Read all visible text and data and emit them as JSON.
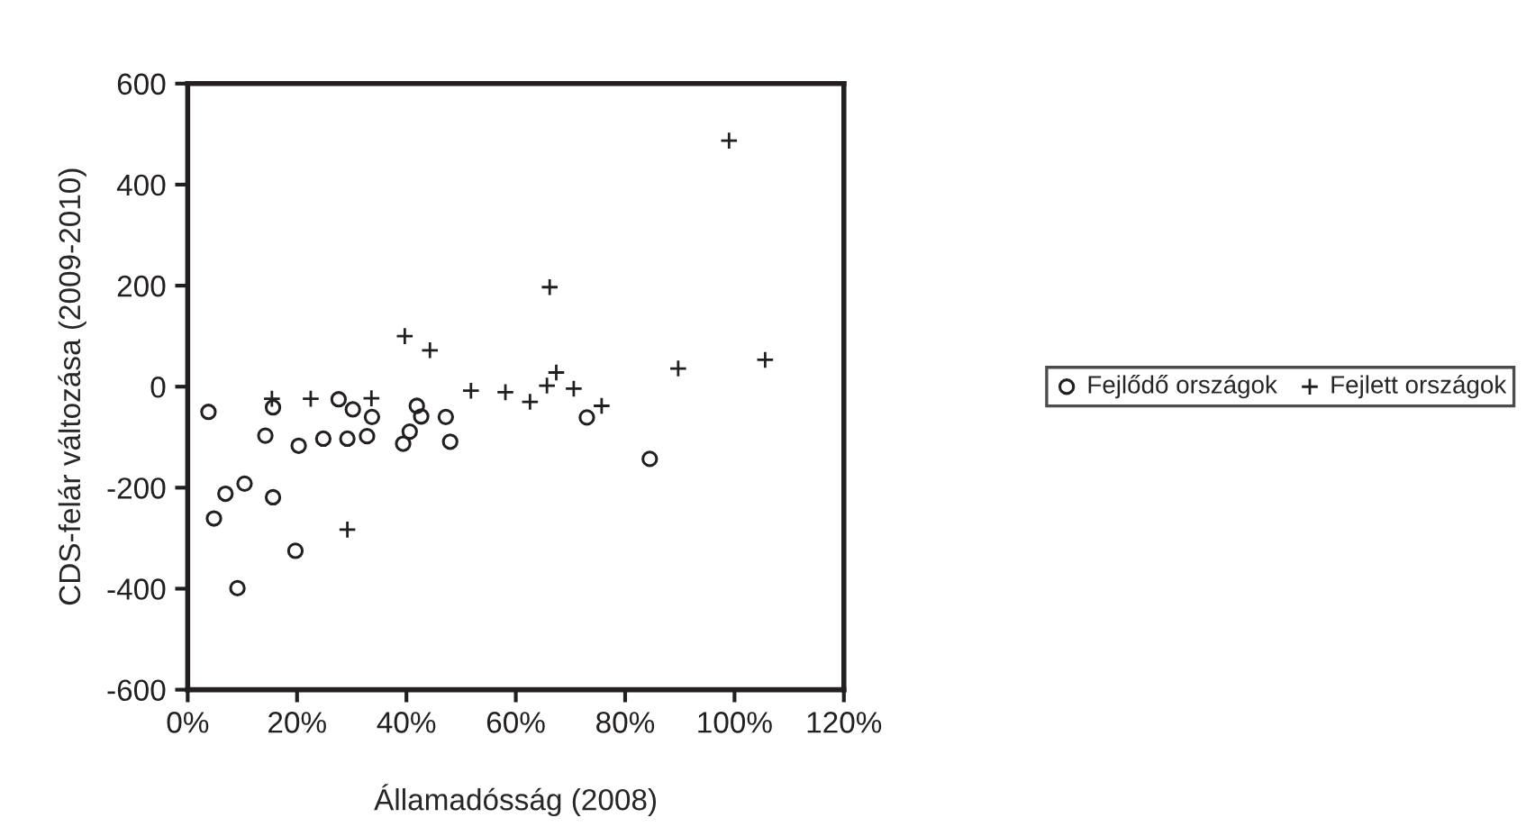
{
  "chart_data": {
    "type": "scatter",
    "xlabel": "Államadósság (2008)",
    "ylabel": "CDS-felár változása (2009-2010)",
    "xlim": [
      0,
      120
    ],
    "xticks": [
      {
        "value": 0,
        "label": "0%"
      },
      {
        "value": 20,
        "label": "20%"
      },
      {
        "value": 40,
        "label": "40%"
      },
      {
        "value": 60,
        "label": "60%"
      },
      {
        "value": 80,
        "label": "80%"
      },
      {
        "value": 100,
        "label": "100%"
      },
      {
        "value": 120,
        "label": "120%"
      }
    ],
    "ylim": [
      -600,
      600
    ],
    "yticks": [
      {
        "value": -600,
        "label": "-600"
      },
      {
        "value": -400,
        "label": "-400"
      },
      {
        "value": -200,
        "label": "-200"
      },
      0,
      200,
      400,
      600
    ],
    "grid": false,
    "legend": "right",
    "series": [
      {
        "name": "Fejlődő országok",
        "color": "#231f20",
        "marker": "circle",
        "x": [
          3.8,
          15.6,
          27.6,
          30.2,
          33.7,
          41.9,
          42.7,
          47.2,
          14.2,
          20.3,
          24.8,
          29.2,
          32.8,
          40.6,
          39.4,
          48.0,
          10.4,
          6.9,
          15.6,
          4.8,
          19.7,
          9.1,
          73.0,
          84.5
        ],
        "values": [
          -50,
          -41,
          -25,
          -45,
          -60,
          -38,
          -59,
          -60,
          -97,
          -117,
          -103,
          -103,
          -98,
          -89,
          -113,
          -109,
          -192,
          -212,
          -219,
          -261,
          -325,
          -399,
          -61,
          -143
        ]
      },
      {
        "name": "Fejlett országok",
        "color": "#231f20",
        "marker": "cross",
        "x": [
          15.4,
          22.5,
          33.6,
          39.7,
          44.3,
          51.8,
          58.1,
          62.6,
          65.7,
          67.4,
          70.6,
          75.7,
          66.2,
          89.7,
          99.0,
          105.6,
          29.2
        ],
        "values": [
          -24,
          -24,
          -23,
          100,
          72,
          -8,
          -11,
          -30,
          2,
          28,
          -4,
          -38,
          197,
          36,
          487,
          53,
          -283
        ]
      }
    ]
  }
}
